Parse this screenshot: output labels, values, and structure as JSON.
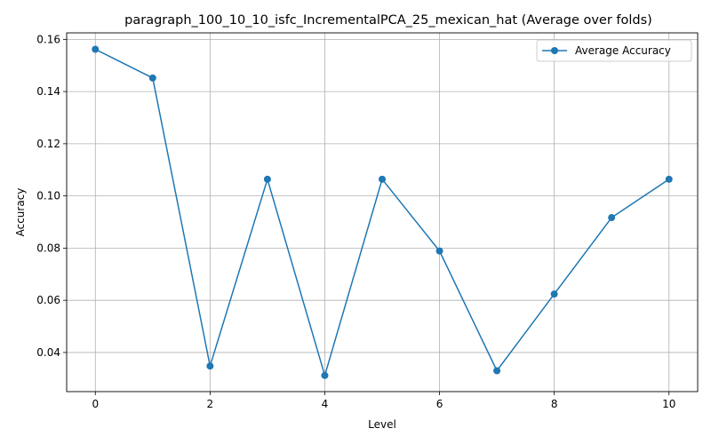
{
  "chart_data": {
    "type": "line",
    "title": "paragraph_100_10_10_isfc_IncrementalPCA_25_mexican_hat (Average over folds)",
    "xlabel": "Level",
    "ylabel": "Accuracy",
    "xlim": [
      -0.5,
      10.5
    ],
    "ylim": [
      0.025,
      0.1625
    ],
    "xticks": [
      0,
      2,
      4,
      6,
      8,
      10
    ],
    "xtick_labels": [
      "0",
      "2",
      "4",
      "6",
      "8",
      "10"
    ],
    "yticks": [
      0.04,
      0.06,
      0.08,
      0.1,
      0.12,
      0.14,
      0.16
    ],
    "ytick_labels": [
      "0.04",
      "0.06",
      "0.08",
      "0.10",
      "0.12",
      "0.14",
      "0.16"
    ],
    "grid": true,
    "legend_position": "top-right",
    "series": [
      {
        "name": "Average Accuracy",
        "color": "#1f77b4",
        "marker": "circle",
        "x": [
          0,
          1,
          2,
          3,
          4,
          5,
          6,
          7,
          8,
          9,
          10
        ],
        "y": [
          0.1562,
          0.1452,
          0.0348,
          0.1064,
          0.0312,
          0.1064,
          0.0789,
          0.033,
          0.0624,
          0.0917,
          0.1064
        ]
      }
    ]
  }
}
